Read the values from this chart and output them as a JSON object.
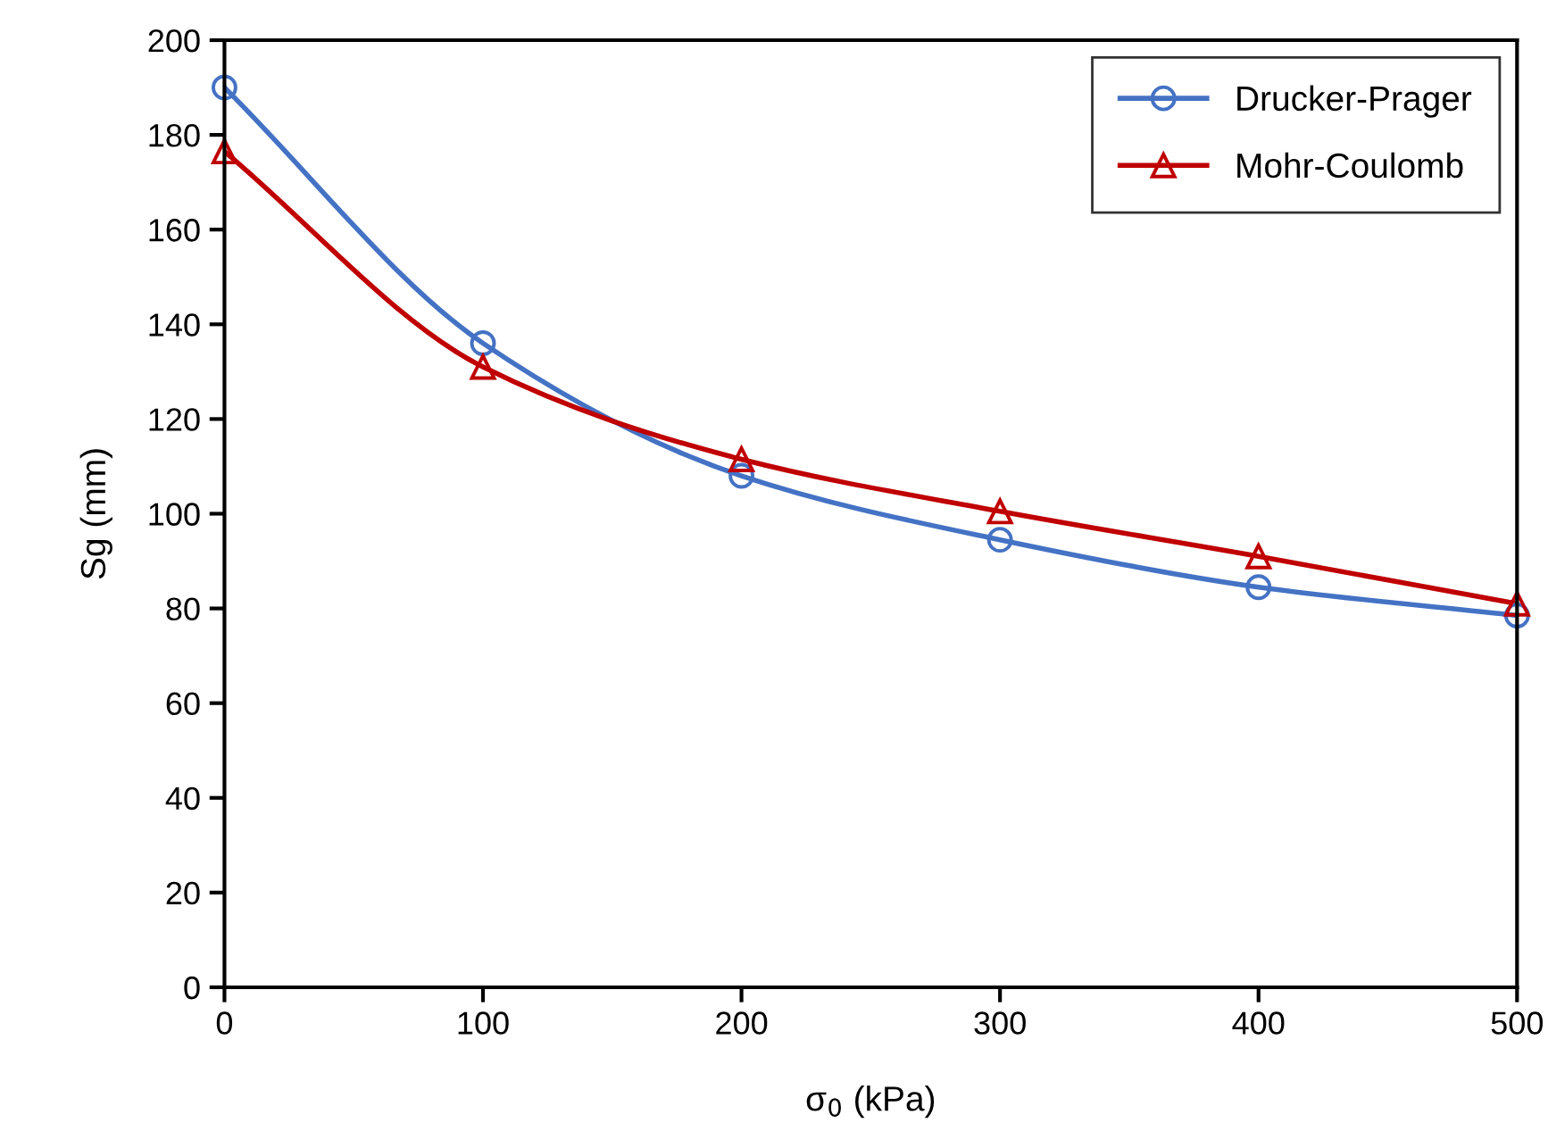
{
  "chart_data": {
    "type": "line",
    "xlabel": "σ$_{0}$ (kPa)",
    "ylabel": "Sg (mm)",
    "x": [
      0,
      100,
      200,
      300,
      400,
      500
    ],
    "series": [
      {
        "name": "Drucker-Prager",
        "color": "#4472c4",
        "marker": "circle",
        "values": [
          190,
          136,
          108,
          94.5,
          84.5,
          78.5
        ]
      },
      {
        "name": "Mohr-Coulomb",
        "color": "#c00000",
        "marker": "triangle",
        "values": [
          176.5,
          131,
          111.5,
          100.5,
          91,
          81
        ]
      }
    ],
    "xlim": [
      0,
      500
    ],
    "xticks": [
      0,
      100,
      200,
      300,
      400,
      500
    ],
    "ylim": [
      0,
      200
    ],
    "yticks": [
      0,
      20,
      40,
      60,
      80,
      100,
      120,
      140,
      160,
      180,
      200
    ],
    "grid": false,
    "legend": "top right",
    "line_style": "solid"
  }
}
